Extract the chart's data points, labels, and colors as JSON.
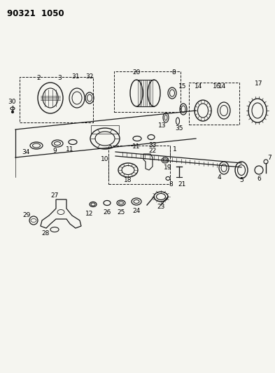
{
  "title": "90321  1050",
  "bg_color": "#f5f5f0",
  "line_color": "#1a1a1a",
  "fig_width": 3.93,
  "fig_height": 5.33,
  "dpi": 100
}
